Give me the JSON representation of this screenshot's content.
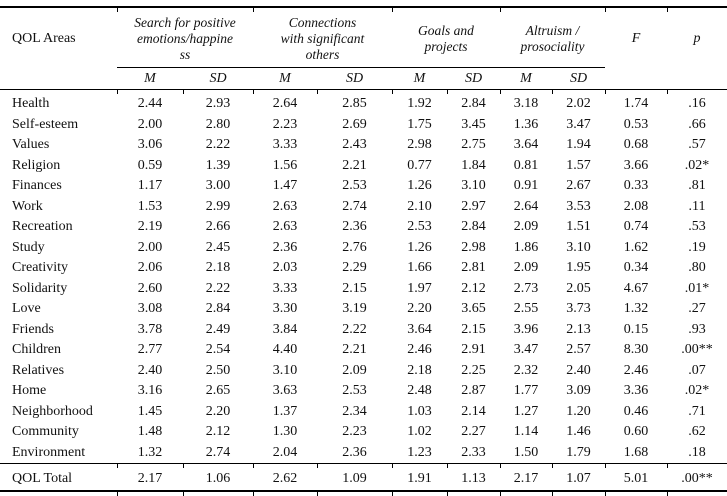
{
  "table": {
    "corner_header": "QOL Areas",
    "groups": [
      {
        "label": "Search for positive\nemotions/happine\nss",
        "sub": [
          "M",
          "SD"
        ]
      },
      {
        "label": "Connections\nwith significant\nothers",
        "sub": [
          "M",
          "SD"
        ]
      },
      {
        "label": "Goals and\nprojects",
        "sub": [
          "M",
          "SD"
        ]
      },
      {
        "label": "Altruism /\nprosociality",
        "sub": [
          "M",
          "SD"
        ]
      }
    ],
    "stat_columns": [
      "F",
      "p"
    ],
    "rows": [
      {
        "area": "Health",
        "values": [
          "2.44",
          "2.93",
          "2.64",
          "2.85",
          "1.92",
          "2.84",
          "3.18",
          "2.02",
          "1.74",
          ".16"
        ]
      },
      {
        "area": "Self-esteem",
        "values": [
          "2.00",
          "2.80",
          "2.23",
          "2.69",
          "1.75",
          "3.45",
          "1.36",
          "3.47",
          "0.53",
          ".66"
        ]
      },
      {
        "area": "Values",
        "values": [
          "3.06",
          "2.22",
          "3.33",
          "2.43",
          "2.98",
          "2.75",
          "3.64",
          "1.94",
          "0.68",
          ".57"
        ]
      },
      {
        "area": "Religion",
        "values": [
          "0.59",
          "1.39",
          "1.56",
          "2.21",
          "0.77",
          "1.84",
          "0.81",
          "1.57",
          "3.66",
          ".02*"
        ]
      },
      {
        "area": "Finances",
        "values": [
          "1.17",
          "3.00",
          "1.47",
          "2.53",
          "1.26",
          "3.10",
          "0.91",
          "2.67",
          "0.33",
          ".81"
        ]
      },
      {
        "area": "Work",
        "values": [
          "1.53",
          "2.99",
          "2.63",
          "2.74",
          "2.10",
          "2.97",
          "2.64",
          "3.53",
          "2.08",
          ".11"
        ]
      },
      {
        "area": "Recreation",
        "values": [
          "2.19",
          "2.66",
          "2.63",
          "2.36",
          "2.53",
          "2.84",
          "2.09",
          "1.51",
          "0.74",
          ".53"
        ]
      },
      {
        "area": "Study",
        "values": [
          "2.00",
          "2.45",
          "2.36",
          "2.76",
          "1.26",
          "2.98",
          "1.86",
          "3.10",
          "1.62",
          ".19"
        ]
      },
      {
        "area": "Creativity",
        "values": [
          "2.06",
          "2.18",
          "2.03",
          "2.29",
          "1.66",
          "2.81",
          "2.09",
          "1.95",
          "0.34",
          ".80"
        ]
      },
      {
        "area": "Solidarity",
        "values": [
          "2.60",
          "2.22",
          "3.33",
          "2.15",
          "1.97",
          "2.12",
          "2.73",
          "2.05",
          "4.67",
          ".01*"
        ]
      },
      {
        "area": "Love",
        "values": [
          "3.08",
          "2.84",
          "3.30",
          "3.19",
          "2.20",
          "3.65",
          "2.55",
          "3.73",
          "1.32",
          ".27"
        ]
      },
      {
        "area": "Friends",
        "values": [
          "3.78",
          "2.49",
          "3.84",
          "2.22",
          "3.64",
          "2.15",
          "3.96",
          "2.13",
          "0.15",
          ".93"
        ]
      },
      {
        "area": "Children",
        "values": [
          "2.77",
          "2.54",
          "4.40",
          "2.21",
          "2.46",
          "2.91",
          "3.47",
          "2.57",
          "8.30",
          ".00**"
        ]
      },
      {
        "area": "Relatives",
        "values": [
          "2.40",
          "2.50",
          "3.10",
          "2.09",
          "2.18",
          "2.25",
          "2.32",
          "2.40",
          "2.46",
          ".07"
        ]
      },
      {
        "area": "Home",
        "values": [
          "3.16",
          "2.65",
          "3.63",
          "2.53",
          "2.48",
          "2.87",
          "1.77",
          "3.09",
          "3.36",
          ".02*"
        ]
      },
      {
        "area": "Neighborhood",
        "values": [
          "1.45",
          "2.20",
          "1.37",
          "2.34",
          "1.03",
          "2.14",
          "1.27",
          "1.20",
          "0.46",
          ".71"
        ]
      },
      {
        "area": "Community",
        "values": [
          "1.48",
          "2.12",
          "1.30",
          "2.23",
          "1.02",
          "2.27",
          "1.14",
          "1.46",
          "0.60",
          ".62"
        ]
      },
      {
        "area": "Environment",
        "values": [
          "1.32",
          "2.74",
          "2.04",
          "2.36",
          "1.23",
          "2.33",
          "1.50",
          "1.79",
          "1.68",
          ".18"
        ]
      }
    ],
    "total_row": {
      "area": "QOL Total",
      "values": [
        "2.17",
        "1.06",
        "2.62",
        "1.09",
        "1.91",
        "1.13",
        "2.17",
        "1.07",
        "5.01",
        ".00**"
      ]
    }
  }
}
